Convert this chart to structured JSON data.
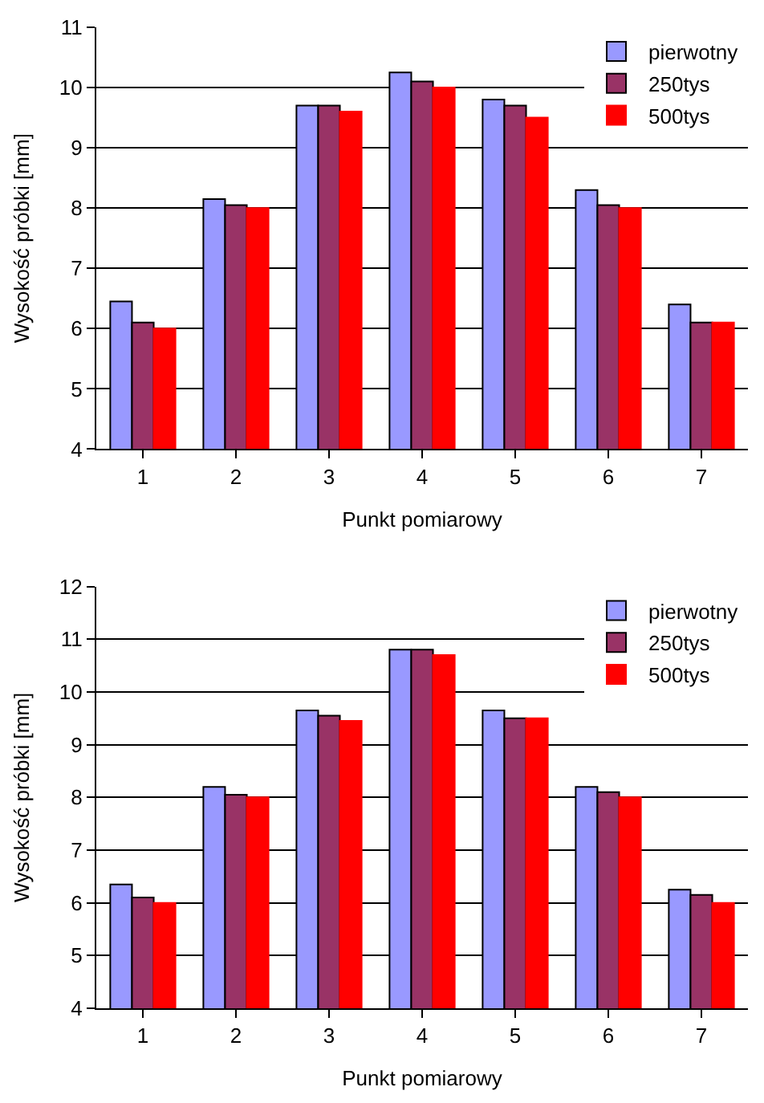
{
  "chart_data": [
    {
      "type": "bar",
      "xlabel": "Punkt pomiarowy",
      "ylabel": "Wysokość próbki [mm]",
      "categories": [
        "1",
        "2",
        "3",
        "4",
        "5",
        "6",
        "7"
      ],
      "series": [
        {
          "name": "pierwotny",
          "color": "#9999ff",
          "values": [
            6.45,
            8.15,
            9.7,
            10.25,
            9.8,
            8.3,
            6.4
          ]
        },
        {
          "name": "250tys",
          "color": "#993366",
          "values": [
            6.1,
            8.05,
            9.7,
            10.1,
            9.7,
            8.05,
            6.1
          ]
        },
        {
          "name": "500tys",
          "color": "#ff0000",
          "values": [
            6.0,
            8.0,
            9.6,
            10.0,
            9.5,
            8.0,
            6.1
          ]
        }
      ],
      "ylim": [
        4,
        11
      ],
      "yticks": [
        4,
        5,
        6,
        7,
        8,
        9,
        10,
        11
      ],
      "grid": "y",
      "legend": "top right"
    },
    {
      "type": "bar",
      "xlabel": "Punkt pomiarowy",
      "ylabel": "Wysokość próbki [mm]",
      "categories": [
        "1",
        "2",
        "3",
        "4",
        "5",
        "6",
        "7"
      ],
      "series": [
        {
          "name": "pierwotny",
          "color": "#9999ff",
          "values": [
            6.35,
            8.2,
            9.65,
            10.8,
            9.65,
            8.2,
            6.25
          ]
        },
        {
          "name": "250tys",
          "color": "#993366",
          "values": [
            6.1,
            8.05,
            9.55,
            10.8,
            9.5,
            8.1,
            6.15
          ]
        },
        {
          "name": "500tys",
          "color": "#ff0000",
          "values": [
            6.0,
            8.0,
            9.45,
            10.7,
            9.5,
            8.0,
            6.0
          ]
        }
      ],
      "ylim": [
        4,
        12
      ],
      "yticks": [
        4,
        5,
        6,
        7,
        8,
        9,
        10,
        11,
        12
      ],
      "grid": "y",
      "legend": "top right"
    }
  ]
}
